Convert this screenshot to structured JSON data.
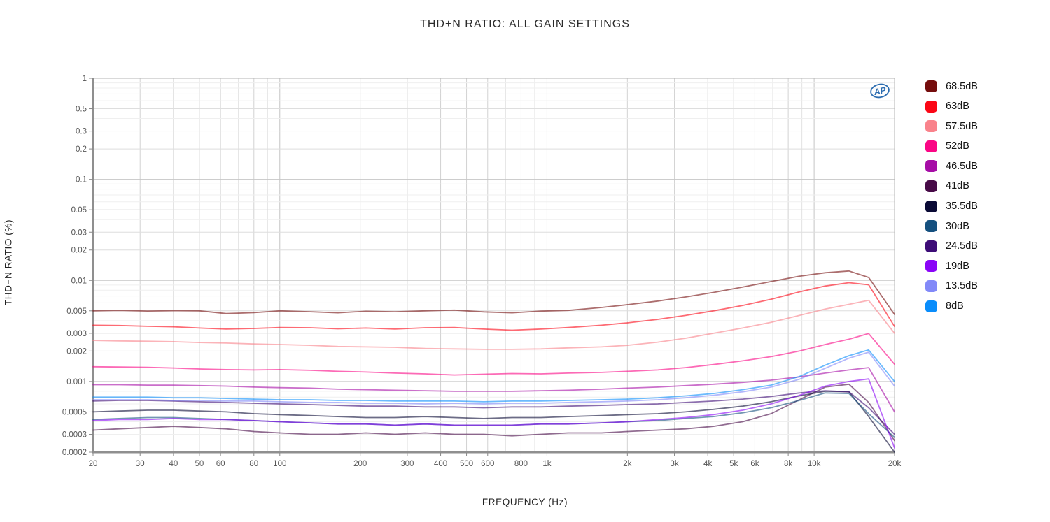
{
  "chart_data": {
    "type": "line",
    "title": "THD+N RATIO: ALL GAIN SETTINGS",
    "xlabel": "FREQUENCY (Hz)",
    "ylabel": "THD+N RATIO (%)",
    "branding": "AP",
    "x_scale": "log",
    "y_scale": "log",
    "xlim": [
      20,
      20000
    ],
    "ylim": [
      0.0002,
      1
    ],
    "grid": true,
    "legend_position": "right",
    "x_tick_values": [
      20,
      30,
      40,
      50,
      60,
      80,
      100,
      200,
      300,
      400,
      500,
      600,
      800,
      1000,
      2000,
      3000,
      4000,
      5000,
      6000,
      8000,
      10000,
      20000
    ],
    "x_tick_labels": [
      "20",
      "30",
      "40",
      "50",
      "60",
      "80",
      "100",
      "200",
      "300",
      "400",
      "500",
      "600",
      "800",
      "1k",
      "2k",
      "3k",
      "4k",
      "5k",
      "6k",
      "8k",
      "10k",
      "20k"
    ],
    "y_tick_values": [
      1,
      0.5,
      0.3,
      0.2,
      0.1,
      0.05,
      0.03,
      0.02,
      0.01,
      0.005,
      0.003,
      0.002,
      0.001,
      0.0005,
      0.0003,
      0.0002
    ],
    "y_tick_labels": [
      "1",
      "0.5",
      "0.3",
      "0.2",
      "0.1",
      "0.05",
      "0.03",
      "0.02",
      "0.01",
      "0.005",
      "0.003",
      "0.002",
      "0.001",
      "0.0005",
      "0.0003",
      "0.0002"
    ],
    "x": [
      20,
      25,
      32,
      40,
      50,
      63,
      80,
      100,
      130,
      165,
      210,
      270,
      350,
      450,
      580,
      740,
      950,
      1200,
      1600,
      2000,
      2600,
      3300,
      4200,
      5400,
      6900,
      8800,
      11000,
      13500,
      16000,
      20000
    ],
    "series": [
      {
        "name": "68.5dB",
        "color": "#750D0D",
        "values": [
          0.005,
          0.00505,
          0.00498,
          0.00502,
          0.005,
          0.0047,
          0.0048,
          0.005,
          0.0049,
          0.00478,
          0.00495,
          0.0049,
          0.005,
          0.00508,
          0.00488,
          0.00478,
          0.00497,
          0.00505,
          0.0054,
          0.00575,
          0.00625,
          0.00685,
          0.0076,
          0.0086,
          0.00975,
          0.011,
          0.0119,
          0.0124,
          0.0107,
          0.0046
        ]
      },
      {
        "name": "63dB",
        "color": "#FB0716",
        "values": [
          0.0036,
          0.00358,
          0.00352,
          0.00348,
          0.00338,
          0.0033,
          0.00335,
          0.00342,
          0.0034,
          0.00332,
          0.00338,
          0.0033,
          0.0034,
          0.00342,
          0.0033,
          0.00322,
          0.0033,
          0.00342,
          0.0036,
          0.0038,
          0.00412,
          0.0045,
          0.005,
          0.00565,
          0.0065,
          0.0077,
          0.0088,
          0.0095,
          0.00905,
          0.0035
        ]
      },
      {
        "name": "57.5dB",
        "color": "#F9828B",
        "values": [
          0.00255,
          0.00252,
          0.0025,
          0.00248,
          0.00243,
          0.0024,
          0.00235,
          0.00232,
          0.00228,
          0.00222,
          0.0022,
          0.00218,
          0.00212,
          0.0021,
          0.00208,
          0.00208,
          0.0021,
          0.00215,
          0.0022,
          0.00228,
          0.00245,
          0.00268,
          0.003,
          0.00338,
          0.00385,
          0.0045,
          0.0052,
          0.0058,
          0.00635,
          0.003
        ]
      },
      {
        "name": "52dB",
        "color": "#FA0785",
        "values": [
          0.0014,
          0.00139,
          0.00138,
          0.00136,
          0.00133,
          0.00131,
          0.0013,
          0.00131,
          0.00129,
          0.00126,
          0.00124,
          0.00121,
          0.00119,
          0.00116,
          0.00118,
          0.0012,
          0.00119,
          0.00121,
          0.00123,
          0.00126,
          0.0013,
          0.00137,
          0.00147,
          0.0016,
          0.00176,
          0.002,
          0.00232,
          0.00262,
          0.00298,
          0.00148
        ]
      },
      {
        "name": "46.5dB",
        "color": "#A60DA6",
        "values": [
          0.00093,
          0.00093,
          0.00092,
          0.00092,
          0.00091,
          0.0009,
          0.00088,
          0.00087,
          0.00086,
          0.00084,
          0.00083,
          0.00082,
          0.00081,
          0.0008,
          0.0008,
          0.0008,
          0.00081,
          0.00082,
          0.00084,
          0.00086,
          0.00088,
          0.00091,
          0.00094,
          0.00098,
          0.00103,
          0.00111,
          0.00121,
          0.0013,
          0.00137,
          0.0005
        ]
      },
      {
        "name": "41dB",
        "color": "#470A47",
        "values": [
          0.00033,
          0.00034,
          0.00035,
          0.00036,
          0.00035,
          0.00034,
          0.00032,
          0.00031,
          0.0003,
          0.0003,
          0.00031,
          0.0003,
          0.00031,
          0.0003,
          0.0003,
          0.00029,
          0.0003,
          0.00031,
          0.00031,
          0.00032,
          0.00033,
          0.00034,
          0.00036,
          0.0004,
          0.00048,
          0.00066,
          0.00088,
          0.00094,
          0.00062,
          0.00026
        ]
      },
      {
        "name": "35.5dB",
        "color": "#0A0A35",
        "values": [
          0.0005,
          0.00051,
          0.00052,
          0.00052,
          0.00051,
          0.0005,
          0.00048,
          0.00047,
          0.00046,
          0.00045,
          0.00044,
          0.00044,
          0.00045,
          0.00044,
          0.00043,
          0.00044,
          0.00044,
          0.00045,
          0.00046,
          0.00047,
          0.00048,
          0.0005,
          0.00053,
          0.00057,
          0.00063,
          0.00072,
          0.0008,
          0.00079,
          0.00045,
          0.0002
        ]
      },
      {
        "name": "30dB",
        "color": "#15507F",
        "values": [
          0.00042,
          0.00043,
          0.00044,
          0.00044,
          0.00043,
          0.00042,
          0.00041,
          0.0004,
          0.00039,
          0.00038,
          0.00038,
          0.00037,
          0.00038,
          0.00037,
          0.00037,
          0.00037,
          0.00038,
          0.00038,
          0.00039,
          0.0004,
          0.00041,
          0.00043,
          0.00045,
          0.00049,
          0.00055,
          0.00065,
          0.00077,
          0.00076,
          0.00048,
          0.00028
        ]
      },
      {
        "name": "24.5dB",
        "color": "#3D0C77",
        "values": [
          0.00064,
          0.00065,
          0.00065,
          0.00064,
          0.00063,
          0.00062,
          0.00061,
          0.0006,
          0.00059,
          0.00058,
          0.00057,
          0.00057,
          0.00056,
          0.00056,
          0.00055,
          0.00056,
          0.00056,
          0.00057,
          0.00058,
          0.00059,
          0.0006,
          0.00062,
          0.00064,
          0.00067,
          0.00071,
          0.00077,
          0.00081,
          0.00079,
          0.00055,
          0.0003
        ]
      },
      {
        "name": "19dB",
        "color": "#8A05F7",
        "values": [
          0.00041,
          0.00042,
          0.00042,
          0.00043,
          0.00042,
          0.00042,
          0.00041,
          0.0004,
          0.00039,
          0.00038,
          0.00038,
          0.00037,
          0.00038,
          0.00037,
          0.00037,
          0.00037,
          0.00038,
          0.00038,
          0.00039,
          0.0004,
          0.00042,
          0.00044,
          0.00047,
          0.00052,
          0.0006,
          0.00073,
          0.0009,
          0.001,
          0.00106,
          0.00022
        ]
      },
      {
        "name": "13.5dB",
        "color": "#8289F8",
        "values": [
          0.00066,
          0.00066,
          0.00066,
          0.00065,
          0.00065,
          0.00064,
          0.00064,
          0.00063,
          0.00062,
          0.00062,
          0.00061,
          0.00061,
          0.0006,
          0.00061,
          0.0006,
          0.00061,
          0.00061,
          0.00062,
          0.00063,
          0.00064,
          0.00066,
          0.00069,
          0.00073,
          0.00079,
          0.00088,
          0.00105,
          0.00135,
          0.0017,
          0.00195,
          0.0009
        ]
      },
      {
        "name": "8dB",
        "color": "#0A8DFB",
        "values": [
          0.0007,
          0.0007,
          0.0007,
          0.00069,
          0.00069,
          0.00068,
          0.00067,
          0.00066,
          0.00066,
          0.00065,
          0.00065,
          0.00064,
          0.00064,
          0.00064,
          0.00063,
          0.00064,
          0.00064,
          0.00065,
          0.00066,
          0.00067,
          0.00069,
          0.00072,
          0.00076,
          0.00083,
          0.00092,
          0.00112,
          0.00145,
          0.0018,
          0.00205,
          0.001
        ]
      }
    ]
  }
}
